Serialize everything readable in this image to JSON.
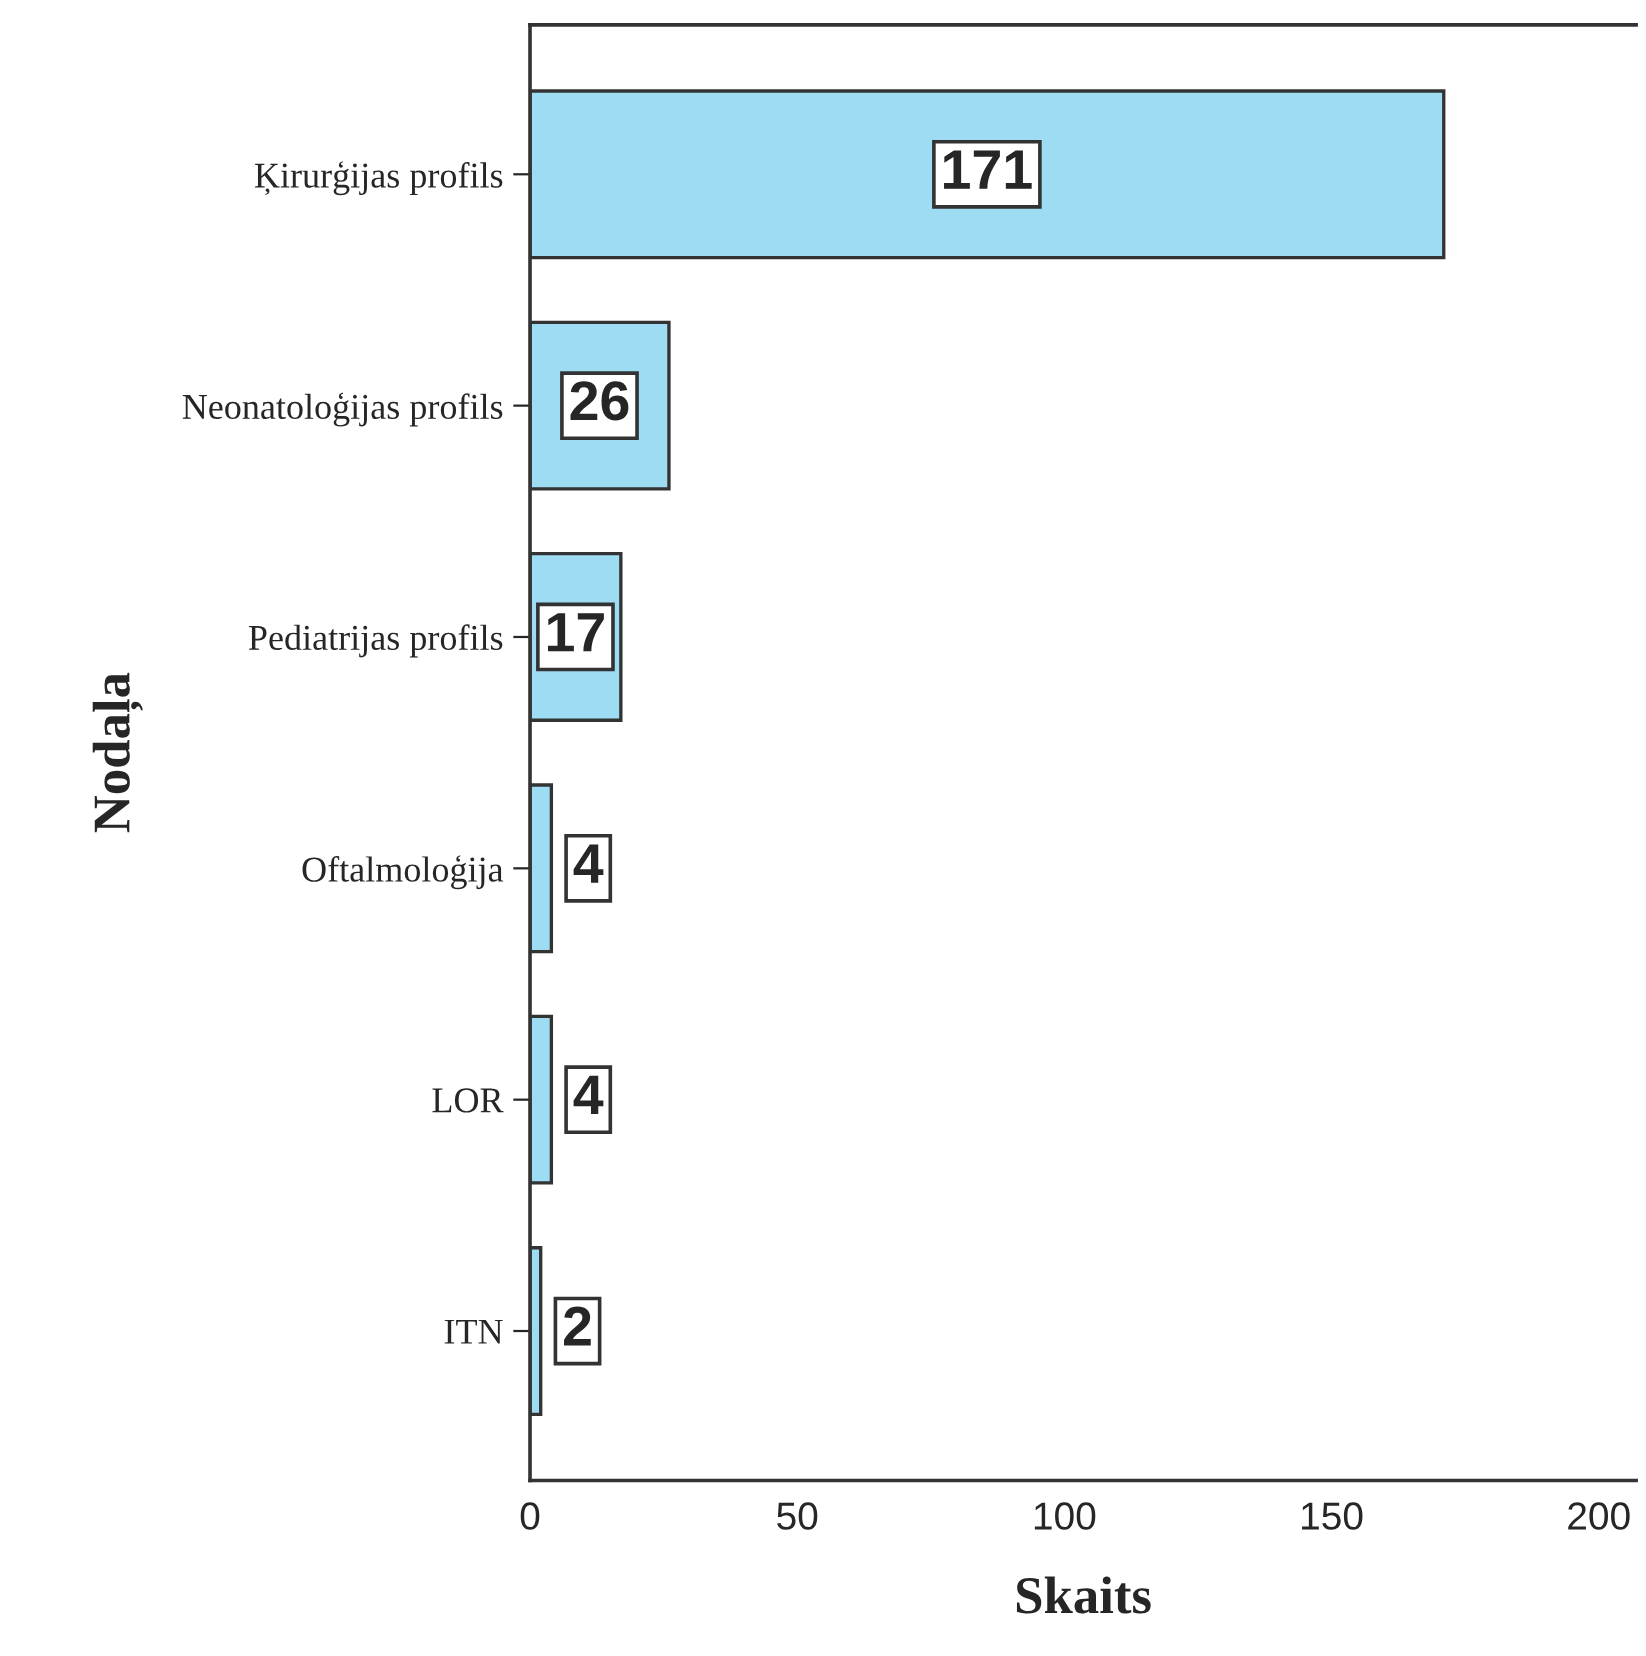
{
  "chart_data": {
    "type": "bar",
    "orientation": "horizontal",
    "xlabel": "Skaits",
    "ylabel": "Nodaļa",
    "categories": [
      "Ķirurģijas profils",
      "Neonatoloģijas profils",
      "Pediatrijas profils",
      "Oftalmoloģija",
      "LOR",
      "ITN"
    ],
    "values": [
      171,
      26,
      17,
      4,
      4,
      2
    ],
    "color": "#9ddcf3",
    "xlim": [
      0,
      207
    ],
    "xticks": [
      0,
      50,
      100,
      150,
      200
    ],
    "grid": false,
    "data_labels": true
  }
}
